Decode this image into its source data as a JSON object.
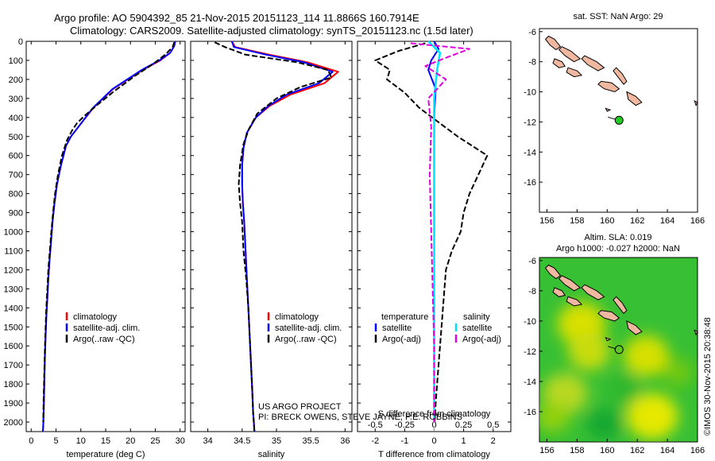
{
  "header": {
    "title_line1": "Argo profile: AO 5904392_85 21-Nov-2015 20151123_114 11.8866S 160.7914E",
    "title_line2": "Climatology: CARS2009. Satellite-adjusted climatology: synTS_20151123.nc (1.5d later)"
  },
  "credit": {
    "line1": "US ARGO PROJECT",
    "line2": "PI: BRECK OWENS, STEVE JAYNE, P.E. ROBBINS"
  },
  "watermark": "©IMOS 30-Nov-2015 20:38:48",
  "colors": {
    "climatology": "#ff0000",
    "satellite": "#0000ff",
    "argo": "#000000",
    "salinity_satellite": "#00e5ff",
    "salinity_argo": "#e000e0",
    "land": "#f0b8a0",
    "float_marker": "#22cc22"
  },
  "chart_data": [
    {
      "type": "line",
      "id": "temperature",
      "xlabel": "temperature (deg C)",
      "ylabel": "",
      "xlim": [
        -1,
        31
      ],
      "ylim": [
        2050,
        0
      ],
      "xticks": [
        0,
        5,
        10,
        15,
        20,
        25,
        30
      ],
      "yticks": [
        0,
        100,
        200,
        300,
        400,
        500,
        600,
        700,
        800,
        900,
        1000,
        1100,
        1200,
        1300,
        1400,
        1500,
        1600,
        1700,
        1800,
        1900,
        2000
      ],
      "legend": [
        "climatology",
        "satellite-adj. clim.",
        "Argo(..raw -QC)"
      ],
      "series": [
        {
          "name": "climatology",
          "color": "#ff0000",
          "style": "solid",
          "x": [
            29.0,
            28.8,
            28.0,
            26.0,
            22.5,
            16.5,
            12.5,
            9.5,
            8.0,
            7.0,
            6.0,
            5.2,
            4.7,
            4.3,
            4.0,
            3.7,
            3.45,
            3.25,
            3.05,
            2.9,
            2.78,
            2.68,
            2.6,
            2.52,
            2.45,
            2.4,
            2.35
          ],
          "y": [
            0,
            25,
            60,
            100,
            150,
            250,
            350,
            450,
            500,
            550,
            650,
            750,
            850,
            950,
            1050,
            1150,
            1250,
            1350,
            1450,
            1550,
            1650,
            1750,
            1850,
            1950,
            2000,
            2030,
            2050
          ]
        },
        {
          "name": "satellite-adj. clim.",
          "color": "#0000ff",
          "style": "solid",
          "x": [
            29.0,
            28.8,
            28.0,
            25.8,
            22.3,
            16.4,
            12.4,
            9.5,
            8.0,
            7.0,
            6.0,
            5.2,
            4.7,
            4.3,
            4.0,
            3.7,
            3.45,
            3.25,
            3.05,
            2.9,
            2.78,
            2.68,
            2.6,
            2.52,
            2.45,
            2.4,
            2.35
          ],
          "y": [
            0,
            25,
            60,
            100,
            150,
            250,
            350,
            450,
            500,
            550,
            650,
            750,
            850,
            950,
            1050,
            1150,
            1250,
            1350,
            1450,
            1550,
            1650,
            1750,
            1850,
            1950,
            2000,
            2030,
            2050
          ]
        },
        {
          "name": "Argo(..raw -QC)",
          "color": "#000000",
          "style": "dashed",
          "x": [
            28.8,
            28.5,
            27.0,
            24.5,
            21.0,
            16.8,
            13.5,
            10.8,
            9.2,
            8.2,
            7.2,
            6.2,
            5.4,
            4.8,
            4.4,
            4.05,
            3.75,
            3.45,
            3.25,
            3.05,
            2.9,
            2.78,
            2.68,
            2.58,
            2.48,
            2.42
          ],
          "y": [
            5,
            30,
            70,
            120,
            180,
            260,
            330,
            390,
            430,
            470,
            520,
            600,
            700,
            800,
            900,
            1000,
            1100,
            1200,
            1300,
            1400,
            1500,
            1600,
            1700,
            1800,
            1900,
            2000
          ]
        }
      ]
    },
    {
      "type": "line",
      "id": "salinity",
      "xlabel": "salinity",
      "ylabel": "",
      "xlim": [
        33.75,
        36.1
      ],
      "ylim": [
        2050,
        0
      ],
      "xticks": [
        34,
        34.5,
        35,
        35.5,
        36
      ],
      "legend": [
        "climatology",
        "satellite-adj. clim.",
        "Argo(..raw -QC)"
      ],
      "series": [
        {
          "name": "climatology",
          "color": "#ff0000",
          "style": "solid",
          "x": [
            34.35,
            34.4,
            34.9,
            35.45,
            35.9,
            35.7,
            35.2,
            34.9,
            34.7,
            34.57,
            34.52,
            34.5,
            34.5,
            34.51,
            34.53,
            34.55,
            34.57,
            34.59,
            34.61,
            34.63,
            34.65,
            34.66,
            34.67,
            34.68
          ],
          "y": [
            0,
            30,
            70,
            110,
            160,
            220,
            280,
            340,
            400,
            480,
            560,
            650,
            750,
            850,
            950,
            1100,
            1250,
            1400,
            1550,
            1700,
            1850,
            1950,
            2000,
            2050
          ]
        },
        {
          "name": "satellite-adj. clim.",
          "color": "#0000ff",
          "style": "solid",
          "x": [
            34.35,
            34.38,
            34.85,
            35.4,
            35.82,
            35.62,
            35.15,
            34.88,
            34.7,
            34.57,
            34.52,
            34.5,
            34.5,
            34.51,
            34.53,
            34.55,
            34.57,
            34.59,
            34.61,
            34.63,
            34.65,
            34.66,
            34.67,
            34.68
          ],
          "y": [
            0,
            30,
            70,
            110,
            160,
            220,
            280,
            340,
            400,
            480,
            560,
            650,
            750,
            850,
            950,
            1100,
            1250,
            1400,
            1550,
            1700,
            1850,
            1950,
            2000,
            2050
          ]
        },
        {
          "name": "Argo(..raw -QC)",
          "color": "#000000",
          "style": "dashed",
          "x": [
            34.1,
            34.25,
            34.55,
            35.3,
            35.75,
            35.8,
            35.35,
            35.0,
            34.72,
            34.6,
            34.52,
            34.47,
            34.45,
            34.47,
            34.5,
            34.52,
            34.56,
            34.59,
            34.61,
            34.63,
            34.65,
            34.66,
            34.67,
            34.68
          ],
          "y": [
            5,
            30,
            70,
            110,
            150,
            190,
            240,
            300,
            380,
            460,
            540,
            650,
            750,
            850,
            950,
            1100,
            1250,
            1400,
            1550,
            1700,
            1850,
            1950,
            2000,
            2050
          ]
        }
      ]
    },
    {
      "type": "line",
      "id": "difference",
      "xlabel": "T difference from climatology",
      "xlabel_top": "S difference from climatology",
      "xlim": [
        -2.6,
        2.6
      ],
      "ylim": [
        2050,
        0
      ],
      "xticks": [
        -2,
        -1,
        0,
        1,
        2
      ],
      "xtick_labels_T": [
        "-2",
        "-1",
        "0",
        "1",
        "2"
      ],
      "xtick_labels_S": [
        "-0.5",
        "-0.25",
        "0",
        "0.25",
        "0.5"
      ],
      "legend_headers": [
        "temperature",
        "salinity"
      ],
      "legend": [
        "satellite",
        "Argo(-adj)",
        "satellite",
        "Argo(-adj)"
      ],
      "series": [
        {
          "name": "temperature satellite",
          "color": "#0000ff",
          "style": "solid",
          "x": [
            0.0,
            0.15,
            -0.1,
            -0.2,
            0.05,
            0.0,
            0.0,
            0.0,
            0.0,
            0.0
          ],
          "y": [
            0,
            40,
            100,
            150,
            250,
            400,
            600,
            1000,
            1500,
            2000
          ]
        },
        {
          "name": "temperature Argo(-adj)",
          "color": "#000000",
          "style": "dashed",
          "x": [
            -0.3,
            -1.2,
            -2.0,
            -1.5,
            -1.6,
            -1.0,
            -0.5,
            0.8,
            1.8,
            1.5,
            1.2,
            1.0,
            0.9,
            0.6,
            0.4,
            0.3,
            0.2,
            0.1,
            0.05,
            0.02
          ],
          "y": [
            10,
            50,
            100,
            150,
            200,
            270,
            350,
            500,
            600,
            700,
            800,
            900,
            1000,
            1100,
            1200,
            1400,
            1600,
            1800,
            1900,
            2000
          ]
        },
        {
          "name": "salinity satellite",
          "color": "#00e5ff",
          "style": "solid",
          "x": [
            -0.2,
            0.2,
            0.1,
            0.0,
            0.0,
            0.0,
            0.0,
            0.0
          ],
          "y": [
            0,
            60,
            150,
            300,
            500,
            1000,
            1500,
            2000
          ]
        },
        {
          "name": "salinity Argo(-adj)",
          "color": "#e000e0",
          "style": "dashed",
          "x": [
            -0.8,
            1.2,
            0.5,
            -0.3,
            0.4,
            -0.2,
            -0.1,
            -0.15,
            -0.1,
            -0.05,
            0.0,
            0.0
          ],
          "y": [
            10,
            40,
            80,
            130,
            200,
            300,
            450,
            700,
            1000,
            1300,
            1600,
            2000
          ]
        }
      ]
    },
    {
      "type": "scatter",
      "id": "map_sst",
      "title": "sat. SST: NaN Argo: 29",
      "xlim": [
        155.5,
        166
      ],
      "ylim": [
        -18,
        -5.8
      ],
      "xticks": [
        156,
        158,
        160,
        162,
        164,
        166
      ],
      "yticks": [
        -6,
        -8,
        -10,
        -12,
        -14,
        -16
      ],
      "points": [
        {
          "x": 160.79,
          "y": -11.89,
          "label": "Argo float"
        }
      ]
    },
    {
      "type": "heatmap",
      "id": "map_sla",
      "title_line1": "Altim. SLA: 0.019",
      "title_line2": "Argo h1000: -0.027 h2000: NaN",
      "xlim": [
        155.5,
        166
      ],
      "ylim": [
        -18,
        -5.8
      ],
      "xticks": [
        156,
        158,
        160,
        162,
        164,
        166
      ],
      "yticks": [
        -6,
        -8,
        -10,
        -12,
        -14,
        -16
      ],
      "points": [
        {
          "x": 160.79,
          "y": -11.89,
          "label": "Argo float"
        }
      ]
    }
  ]
}
